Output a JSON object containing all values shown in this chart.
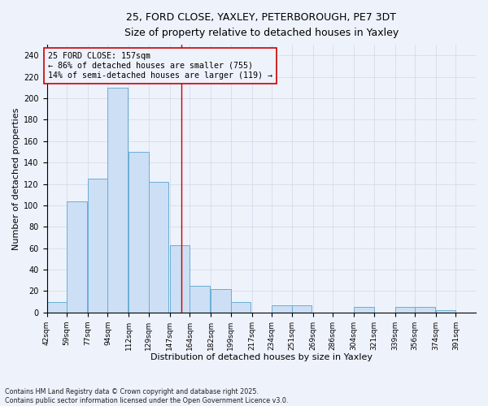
{
  "title_line1": "25, FORD CLOSE, YAXLEY, PETERBOROUGH, PE7 3DT",
  "title_line2": "Size of property relative to detached houses in Yaxley",
  "xlabel": "Distribution of detached houses by size in Yaxley",
  "ylabel": "Number of detached properties",
  "footer": "Contains HM Land Registry data © Crown copyright and database right 2025.\nContains public sector information licensed under the Open Government Licence v3.0.",
  "annotation_title": "25 FORD CLOSE: 157sqm",
  "annotation_line2": "← 86% of detached houses are smaller (755)",
  "annotation_line3": "14% of semi-detached houses are larger (119) →",
  "property_size": 157,
  "bins": [
    42,
    59,
    77,
    94,
    112,
    129,
    147,
    164,
    182,
    199,
    217,
    234,
    251,
    269,
    286,
    304,
    321,
    339,
    356,
    374,
    391
  ],
  "counts": [
    10,
    104,
    125,
    210,
    150,
    122,
    63,
    25,
    22,
    10,
    0,
    7,
    7,
    0,
    0,
    5,
    0,
    5,
    5,
    2
  ],
  "bar_facecolor": "#ccdff5",
  "bar_edgecolor": "#6aaed6",
  "vline_color": "#cc0000",
  "annotation_box_edgecolor": "#cc0000",
  "grid_color": "#d0d8e8",
  "background_color": "#eef2fb",
  "ylim": [
    0,
    250
  ],
  "yticks": [
    0,
    20,
    40,
    60,
    80,
    100,
    120,
    140,
    160,
    180,
    200,
    220,
    240
  ],
  "figwidth": 6.0,
  "figheight": 5.0,
  "dpi": 100
}
